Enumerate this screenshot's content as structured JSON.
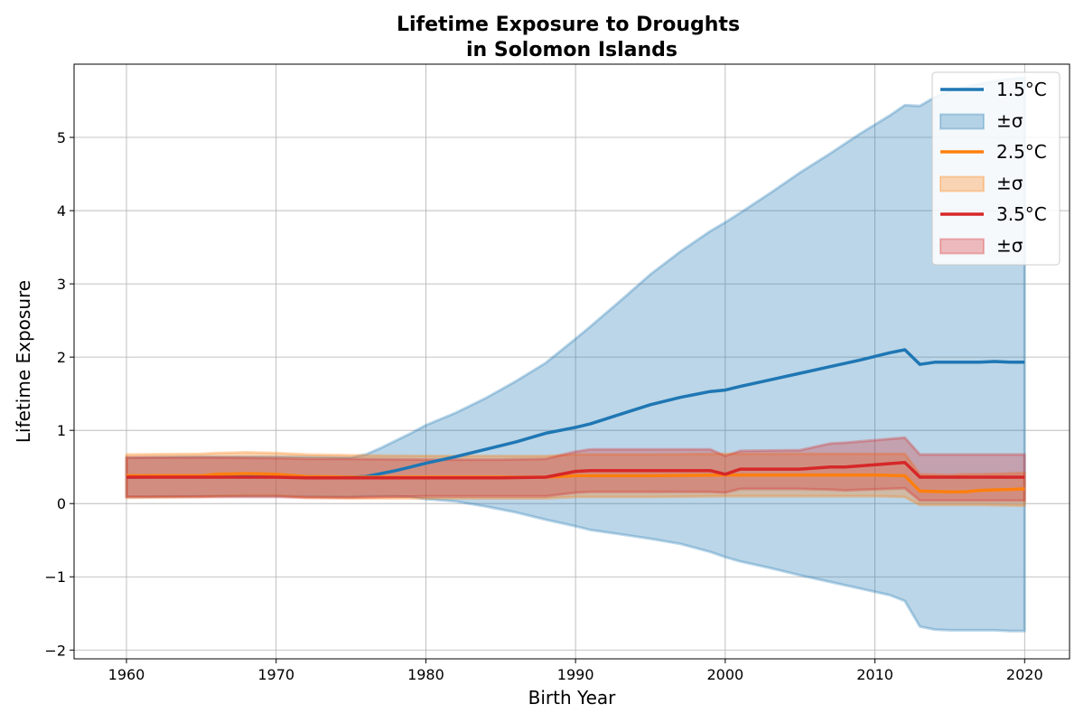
{
  "chart_data": {
    "type": "line",
    "title_line1": "Lifetime Exposure to Droughts",
    "title_line2": "in Solomon Islands",
    "xlabel": "Birth Year",
    "ylabel": "Lifetime Exposure",
    "xlim": [
      1956.5,
      2023
    ],
    "ylim": [
      -2.12,
      6.0
    ],
    "xticks": [
      1960,
      1970,
      1980,
      1990,
      2000,
      2010,
      2020
    ],
    "xtick_labels": [
      "1960",
      "1970",
      "1980",
      "1990",
      "2000",
      "2010",
      "2020"
    ],
    "yticks": [
      -2,
      -1,
      0,
      1,
      2,
      3,
      4,
      5
    ],
    "ytick_labels": [
      "−2",
      "−1",
      "0",
      "1",
      "2",
      "3",
      "4",
      "5"
    ],
    "grid": true,
    "legend_position": "top-right",
    "series": [
      {
        "name": "1.5°C",
        "band_label": "±σ",
        "color": "#1f77b4",
        "band_color": "#1f77b4",
        "x": [
          1960,
          1965,
          1970,
          1975,
          1976,
          1977,
          1978,
          1979,
          1980,
          1982,
          1984,
          1986,
          1988,
          1990,
          1991,
          1993,
          1995,
          1997,
          1999,
          2000,
          2001,
          2003,
          2005,
          2007,
          2009,
          2011,
          2012,
          2013,
          2014,
          2015,
          2016,
          2017,
          2018,
          2019,
          2020
        ],
        "y": [
          0.36,
          0.37,
          0.37,
          0.36,
          0.37,
          0.41,
          0.45,
          0.5,
          0.55,
          0.64,
          0.74,
          0.84,
          0.96,
          1.04,
          1.09,
          1.22,
          1.35,
          1.45,
          1.53,
          1.55,
          1.6,
          1.69,
          1.78,
          1.87,
          1.96,
          2.06,
          2.1,
          1.9,
          1.93,
          1.93,
          1.93,
          1.93,
          1.94,
          1.93,
          1.93
        ],
        "upper": [
          0.63,
          0.64,
          0.64,
          0.63,
          0.67,
          0.76,
          0.86,
          0.96,
          1.07,
          1.24,
          1.44,
          1.67,
          1.92,
          2.25,
          2.42,
          2.77,
          3.13,
          3.44,
          3.72,
          3.84,
          3.97,
          4.24,
          4.52,
          4.78,
          5.05,
          5.3,
          5.44,
          5.43,
          5.55,
          5.63,
          5.69,
          5.73,
          5.77,
          5.8,
          5.82
        ],
        "lower": [
          0.09,
          0.1,
          0.1,
          0.09,
          0.1,
          0.1,
          0.1,
          0.09,
          0.06,
          0.03,
          -0.04,
          -0.12,
          -0.22,
          -0.31,
          -0.36,
          -0.42,
          -0.48,
          -0.55,
          -0.66,
          -0.73,
          -0.79,
          -0.88,
          -0.98,
          -1.07,
          -1.16,
          -1.25,
          -1.33,
          -1.68,
          -1.72,
          -1.73,
          -1.73,
          -1.73,
          -1.73,
          -1.74,
          -1.74
        ]
      },
      {
        "name": "2.5°C",
        "band_label": "±σ",
        "color": "#ff7f0e",
        "band_color": "#ff7f0e",
        "x": [
          1960,
          1965,
          1966,
          1968,
          1970,
          1972,
          1975,
          1980,
          1985,
          1988,
          1990,
          1995,
          2000,
          2005,
          2010,
          2012,
          2013,
          2015,
          2016,
          2017,
          2020
        ],
        "y": [
          0.38,
          0.38,
          0.4,
          0.41,
          0.4,
          0.37,
          0.36,
          0.36,
          0.36,
          0.36,
          0.38,
          0.38,
          0.39,
          0.39,
          0.39,
          0.38,
          0.17,
          0.16,
          0.16,
          0.18,
          0.2
        ],
        "upper": [
          0.67,
          0.68,
          0.69,
          0.7,
          0.69,
          0.67,
          0.66,
          0.65,
          0.65,
          0.65,
          0.67,
          0.67,
          0.68,
          0.68,
          0.68,
          0.68,
          0.4,
          0.39,
          0.4,
          0.4,
          0.42
        ],
        "lower": [
          0.08,
          0.09,
          0.1,
          0.11,
          0.11,
          0.08,
          0.07,
          0.07,
          0.07,
          0.07,
          0.09,
          0.09,
          0.1,
          0.1,
          0.1,
          0.09,
          -0.02,
          -0.02,
          -0.02,
          -0.02,
          -0.03
        ]
      },
      {
        "name": "3.5°C",
        "band_label": "±σ",
        "color": "#d62728",
        "band_color": "#d62728",
        "x": [
          1960,
          1965,
          1970,
          1972,
          1975,
          1980,
          1985,
          1988,
          1990,
          1991,
          1995,
          1999,
          2000,
          2001,
          2005,
          2007,
          2008,
          2012,
          2013,
          2015,
          2020
        ],
        "y": [
          0.36,
          0.36,
          0.36,
          0.35,
          0.35,
          0.35,
          0.35,
          0.36,
          0.44,
          0.45,
          0.45,
          0.45,
          0.4,
          0.47,
          0.47,
          0.5,
          0.5,
          0.56,
          0.36,
          0.36,
          0.36
        ],
        "upper": [
          0.63,
          0.63,
          0.62,
          0.61,
          0.61,
          0.6,
          0.6,
          0.61,
          0.71,
          0.74,
          0.74,
          0.74,
          0.65,
          0.72,
          0.73,
          0.82,
          0.83,
          0.9,
          0.67,
          0.67,
          0.67
        ],
        "lower": [
          0.09,
          0.09,
          0.09,
          0.08,
          0.08,
          0.1,
          0.1,
          0.1,
          0.15,
          0.16,
          0.16,
          0.16,
          0.15,
          0.2,
          0.2,
          0.19,
          0.18,
          0.21,
          0.04,
          0.04,
          0.04
        ]
      }
    ]
  }
}
